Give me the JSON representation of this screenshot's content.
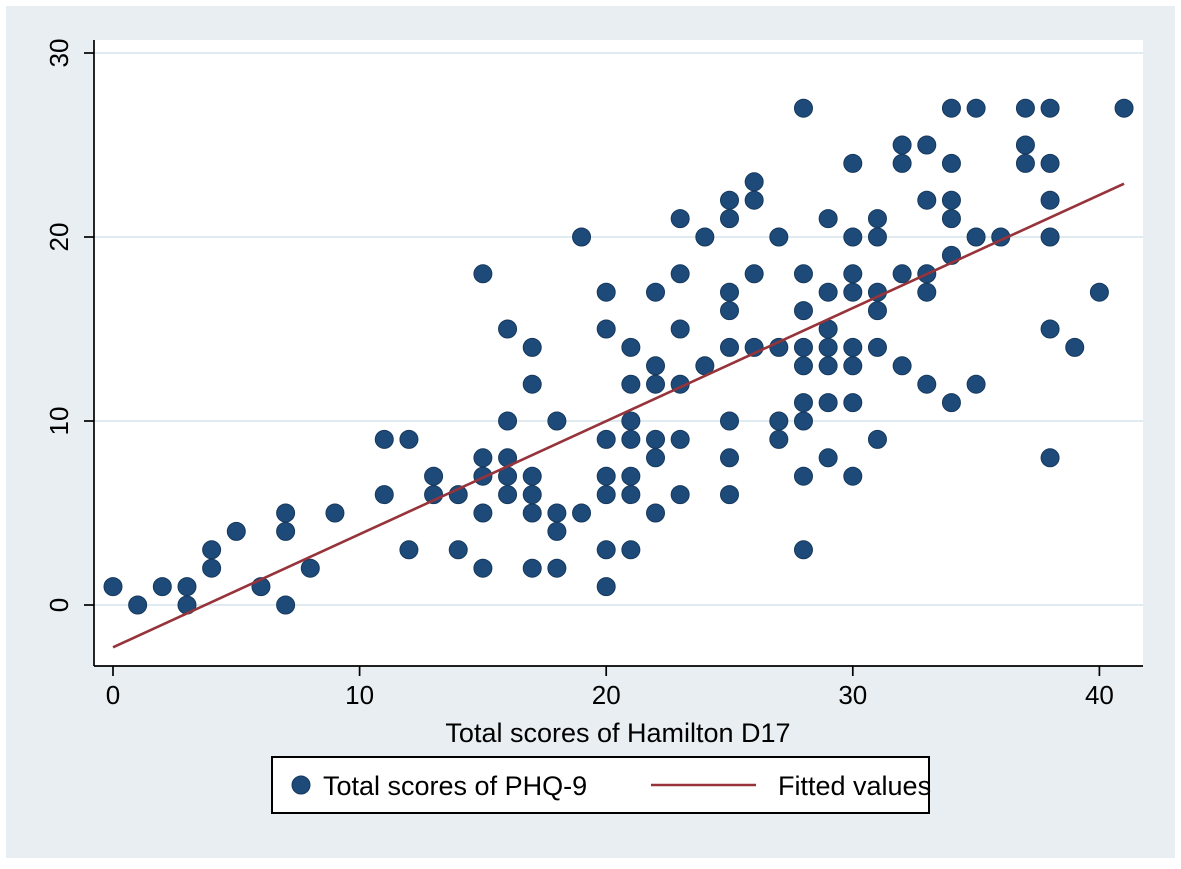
{
  "chart_data": {
    "type": "scatter",
    "title": "",
    "xlabel": "Total scores of Hamilton D17",
    "ylabel": "",
    "x_ticks": [
      0,
      10,
      20,
      30,
      40
    ],
    "y_ticks": [
      0,
      10,
      20,
      30
    ],
    "xlim": [
      -0.8,
      41.8
    ],
    "ylim": [
      -3.3,
      30.7
    ],
    "grid": "horizontal-light",
    "legend_position": "bottom-center",
    "series": [
      {
        "name": "Total scores of PHQ-9",
        "type": "scatter",
        "color": "#1d4a79",
        "edge_color": "#16395d",
        "points": [
          [
            0,
            1
          ],
          [
            1,
            0
          ],
          [
            2,
            1
          ],
          [
            3,
            0
          ],
          [
            3,
            1
          ],
          [
            4,
            2
          ],
          [
            4,
            3
          ],
          [
            5,
            4
          ],
          [
            6,
            1
          ],
          [
            7,
            0
          ],
          [
            7,
            4
          ],
          [
            7,
            5
          ],
          [
            8,
            2
          ],
          [
            9,
            5
          ],
          [
            11,
            6
          ],
          [
            11,
            9
          ],
          [
            12,
            3
          ],
          [
            12,
            9
          ],
          [
            13,
            6
          ],
          [
            13,
            7
          ],
          [
            14,
            3
          ],
          [
            14,
            6
          ],
          [
            15,
            2
          ],
          [
            15,
            5
          ],
          [
            15,
            7
          ],
          [
            15,
            8
          ],
          [
            15,
            18
          ],
          [
            16,
            6
          ],
          [
            16,
            7
          ],
          [
            16,
            8
          ],
          [
            16,
            10
          ],
          [
            16,
            15
          ],
          [
            17,
            2
          ],
          [
            17,
            5
          ],
          [
            17,
            6
          ],
          [
            17,
            7
          ],
          [
            17,
            12
          ],
          [
            17,
            14
          ],
          [
            18,
            2
          ],
          [
            18,
            4
          ],
          [
            18,
            5
          ],
          [
            18,
            10
          ],
          [
            19,
            5
          ],
          [
            19,
            20
          ],
          [
            20,
            1
          ],
          [
            20,
            3
          ],
          [
            20,
            6
          ],
          [
            20,
            7
          ],
          [
            20,
            9
          ],
          [
            20,
            15
          ],
          [
            20,
            17
          ],
          [
            21,
            3
          ],
          [
            21,
            6
          ],
          [
            21,
            7
          ],
          [
            21,
            9
          ],
          [
            21,
            10
          ],
          [
            21,
            12
          ],
          [
            21,
            14
          ],
          [
            22,
            5
          ],
          [
            22,
            8
          ],
          [
            22,
            9
          ],
          [
            22,
            12
          ],
          [
            22,
            13
          ],
          [
            22,
            17
          ],
          [
            23,
            6
          ],
          [
            23,
            9
          ],
          [
            23,
            12
          ],
          [
            23,
            15
          ],
          [
            23,
            18
          ],
          [
            23,
            21
          ],
          [
            24,
            13
          ],
          [
            24,
            20
          ],
          [
            25,
            6
          ],
          [
            25,
            8
          ],
          [
            25,
            10
          ],
          [
            25,
            14
          ],
          [
            25,
            16
          ],
          [
            25,
            17
          ],
          [
            25,
            21
          ],
          [
            25,
            22
          ],
          [
            26,
            14
          ],
          [
            26,
            18
          ],
          [
            26,
            22
          ],
          [
            26,
            23
          ],
          [
            27,
            9
          ],
          [
            27,
            10
          ],
          [
            27,
            14
          ],
          [
            27,
            20
          ],
          [
            28,
            3
          ],
          [
            28,
            7
          ],
          [
            28,
            10
          ],
          [
            28,
            11
          ],
          [
            28,
            13
          ],
          [
            28,
            14
          ],
          [
            28,
            16
          ],
          [
            28,
            18
          ],
          [
            28,
            27
          ],
          [
            29,
            8
          ],
          [
            29,
            11
          ],
          [
            29,
            13
          ],
          [
            29,
            14
          ],
          [
            29,
            15
          ],
          [
            29,
            17
          ],
          [
            29,
            21
          ],
          [
            30,
            7
          ],
          [
            30,
            11
          ],
          [
            30,
            13
          ],
          [
            30,
            14
          ],
          [
            30,
            17
          ],
          [
            30,
            18
          ],
          [
            30,
            20
          ],
          [
            30,
            24
          ],
          [
            31,
            9
          ],
          [
            31,
            14
          ],
          [
            31,
            16
          ],
          [
            31,
            17
          ],
          [
            31,
            20
          ],
          [
            31,
            21
          ],
          [
            32,
            13
          ],
          [
            32,
            18
          ],
          [
            32,
            24
          ],
          [
            32,
            25
          ],
          [
            33,
            12
          ],
          [
            33,
            17
          ],
          [
            33,
            18
          ],
          [
            33,
            22
          ],
          [
            33,
            25
          ],
          [
            34,
            11
          ],
          [
            34,
            19
          ],
          [
            34,
            21
          ],
          [
            34,
            22
          ],
          [
            34,
            24
          ],
          [
            34,
            27
          ],
          [
            35,
            12
          ],
          [
            35,
            20
          ],
          [
            35,
            27
          ],
          [
            36,
            20
          ],
          [
            37,
            24
          ],
          [
            37,
            25
          ],
          [
            37,
            27
          ],
          [
            38,
            8
          ],
          [
            38,
            15
          ],
          [
            38,
            20
          ],
          [
            38,
            22
          ],
          [
            38,
            24
          ],
          [
            38,
            27
          ],
          [
            39,
            14
          ],
          [
            40,
            17
          ],
          [
            41,
            27
          ]
        ]
      },
      {
        "name": "Fitted values",
        "type": "line",
        "color": "#97333a",
        "points": [
          [
            0,
            -2.3
          ],
          [
            41,
            22.9
          ]
        ]
      }
    ]
  },
  "colors": {
    "outer_background": "#e8eef2",
    "plot_background": "#ffffff",
    "gridline": "#dfeaf1",
    "axis": "#000000",
    "marker": "#1d4a79",
    "marker_edge": "#16395d",
    "fit_line": "#97333a",
    "legend_border": "#000000",
    "legend_background": "#ffffff"
  },
  "legend": {
    "scatter_label": "Total scores of PHQ-9",
    "line_label": "Fitted values"
  }
}
